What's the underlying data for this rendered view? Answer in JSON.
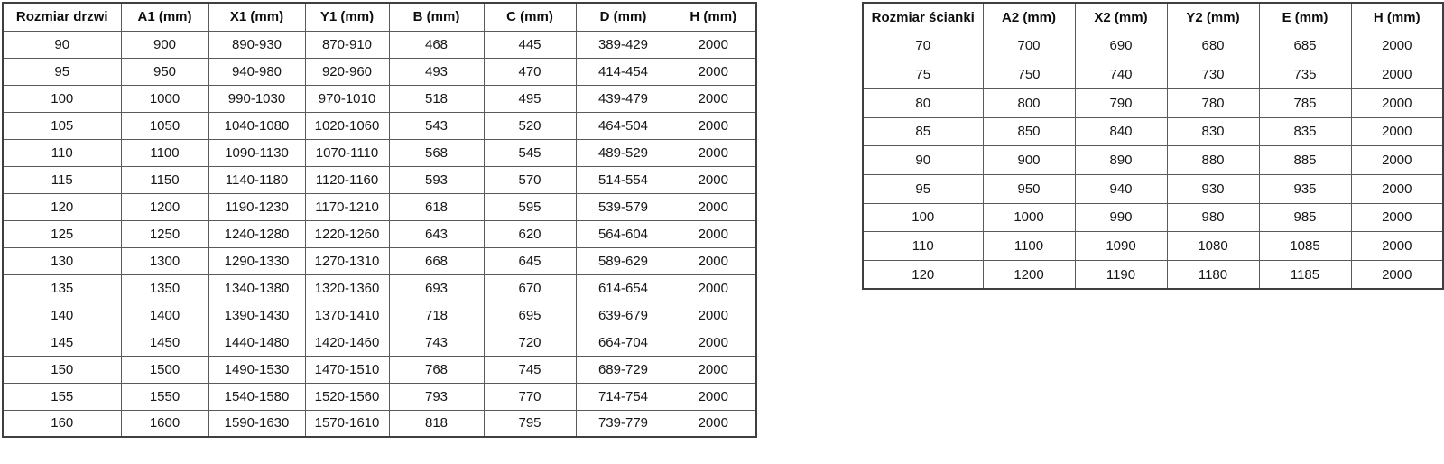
{
  "tables": [
    {
      "name": "door-size-table",
      "columns": [
        "Rozmiar drzwi",
        "A1 (mm)",
        "X1 (mm)",
        "Y1 (mm)",
        "B (mm)",
        "C (mm)",
        "D (mm)",
        "H (mm)"
      ],
      "rows": [
        [
          "90",
          "900",
          "890-930",
          "870-910",
          "468",
          "445",
          "389-429",
          "2000"
        ],
        [
          "95",
          "950",
          "940-980",
          "920-960",
          "493",
          "470",
          "414-454",
          "2000"
        ],
        [
          "100",
          "1000",
          "990-1030",
          "970-1010",
          "518",
          "495",
          "439-479",
          "2000"
        ],
        [
          "105",
          "1050",
          "1040-1080",
          "1020-1060",
          "543",
          "520",
          "464-504",
          "2000"
        ],
        [
          "110",
          "1100",
          "1090-1130",
          "1070-1110",
          "568",
          "545",
          "489-529",
          "2000"
        ],
        [
          "115",
          "1150",
          "1140-1180",
          "1120-1160",
          "593",
          "570",
          "514-554",
          "2000"
        ],
        [
          "120",
          "1200",
          "1190-1230",
          "1170-1210",
          "618",
          "595",
          "539-579",
          "2000"
        ],
        [
          "125",
          "1250",
          "1240-1280",
          "1220-1260",
          "643",
          "620",
          "564-604",
          "2000"
        ],
        [
          "130",
          "1300",
          "1290-1330",
          "1270-1310",
          "668",
          "645",
          "589-629",
          "2000"
        ],
        [
          "135",
          "1350",
          "1340-1380",
          "1320-1360",
          "693",
          "670",
          "614-654",
          "2000"
        ],
        [
          "140",
          "1400",
          "1390-1430",
          "1370-1410",
          "718",
          "695",
          "639-679",
          "2000"
        ],
        [
          "145",
          "1450",
          "1440-1480",
          "1420-1460",
          "743",
          "720",
          "664-704",
          "2000"
        ],
        [
          "150",
          "1500",
          "1490-1530",
          "1470-1510",
          "768",
          "745",
          "689-729",
          "2000"
        ],
        [
          "155",
          "1550",
          "1540-1580",
          "1520-1560",
          "793",
          "770",
          "714-754",
          "2000"
        ],
        [
          "160",
          "1600",
          "1590-1630",
          "1570-1610",
          "818",
          "795",
          "739-779",
          "2000"
        ]
      ]
    },
    {
      "name": "wall-size-table",
      "columns": [
        "Rozmiar ścianki",
        "A2 (mm)",
        "X2 (mm)",
        "Y2 (mm)",
        "E (mm)",
        "H (mm)"
      ],
      "rows": [
        [
          "70",
          "700",
          "690",
          "680",
          "685",
          "2000"
        ],
        [
          "75",
          "750",
          "740",
          "730",
          "735",
          "2000"
        ],
        [
          "80",
          "800",
          "790",
          "780",
          "785",
          "2000"
        ],
        [
          "85",
          "850",
          "840",
          "830",
          "835",
          "2000"
        ],
        [
          "90",
          "900",
          "890",
          "880",
          "885",
          "2000"
        ],
        [
          "95",
          "950",
          "940",
          "930",
          "935",
          "2000"
        ],
        [
          "100",
          "1000",
          "990",
          "980",
          "985",
          "2000"
        ],
        [
          "110",
          "1100",
          "1090",
          "1080",
          "1085",
          "2000"
        ],
        [
          "120",
          "1200",
          "1190",
          "1180",
          "1185",
          "2000"
        ]
      ]
    }
  ],
  "colors": {
    "background": "#ffffff",
    "inner_border": "#595959",
    "outer_border": "#3f3f3f",
    "header_text": "#0d0d0d",
    "cell_text": "#161616"
  }
}
